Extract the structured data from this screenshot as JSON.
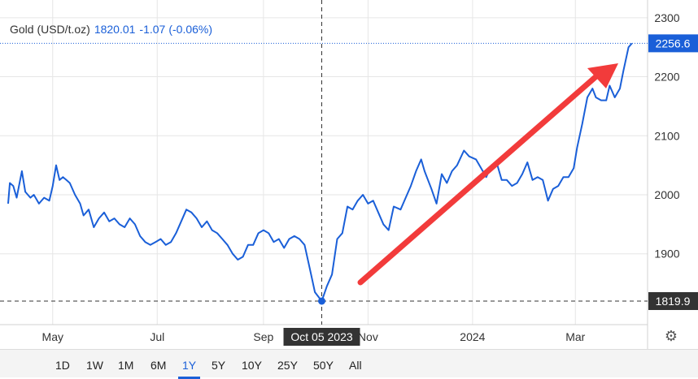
{
  "legend": {
    "name": "Gold (USD/t.oz)",
    "price": "1820.01",
    "change": "-1.07",
    "change_pct": "(-0.06%)"
  },
  "range_buttons": [
    "1D",
    "1W",
    "1M",
    "6M",
    "1Y",
    "5Y",
    "10Y",
    "25Y",
    "50Y",
    "All"
  ],
  "active_range": "1Y",
  "colors": {
    "line": "#1a5fd8",
    "arrow": "#f23b3b",
    "badge": "#333333",
    "grid": "#e6e6e6",
    "axis": "#333333"
  },
  "icons": {
    "settings": "gear-icon"
  },
  "chart_data": {
    "type": "line",
    "ylim": [
      1780,
      2330
    ],
    "yticks": [
      1900,
      2000,
      2100,
      2200,
      2300
    ],
    "ytick_labels": [
      "1900",
      "2000",
      "2100",
      "2200",
      "2300"
    ],
    "xlim": [
      "2023-04-05",
      "2024-04-05"
    ],
    "xticks": [
      {
        "label": "May",
        "date": "2023-05-01"
      },
      {
        "label": "Jul",
        "date": "2023-07-01"
      },
      {
        "label": "Sep",
        "date": "2023-09-01"
      },
      {
        "label": "Nov",
        "date": "2023-11-01"
      },
      {
        "label": "2024",
        "date": "2024-01-01"
      },
      {
        "label": "Mar",
        "date": "2024-03-01"
      }
    ],
    "grid": true,
    "last_value_badge": "2256.6",
    "crosshair": {
      "date": "2023-10-05",
      "value": 1819.9,
      "x_label": "Oct 05 2023",
      "y_label": "1819.9"
    },
    "series": [
      {
        "values": [
          [
            "2023-04-05",
            1985
          ],
          [
            "2023-04-06",
            2020
          ],
          [
            "2023-04-08",
            2015
          ],
          [
            "2023-04-10",
            1995
          ],
          [
            "2023-04-13",
            2040
          ],
          [
            "2023-04-15",
            2005
          ],
          [
            "2023-04-18",
            1995
          ],
          [
            "2023-04-20",
            2000
          ],
          [
            "2023-04-23",
            1985
          ],
          [
            "2023-04-26",
            1995
          ],
          [
            "2023-04-29",
            1990
          ],
          [
            "2023-05-01",
            2015
          ],
          [
            "2023-05-03",
            2050
          ],
          [
            "2023-05-05",
            2025
          ],
          [
            "2023-05-07",
            2030
          ],
          [
            "2023-05-09",
            2025
          ],
          [
            "2023-05-11",
            2020
          ],
          [
            "2023-05-14",
            2000
          ],
          [
            "2023-05-17",
            1985
          ],
          [
            "2023-05-19",
            1965
          ],
          [
            "2023-05-22",
            1975
          ],
          [
            "2023-05-25",
            1945
          ],
          [
            "2023-05-28",
            1960
          ],
          [
            "2023-05-31",
            1970
          ],
          [
            "2023-06-03",
            1955
          ],
          [
            "2023-06-06",
            1960
          ],
          [
            "2023-06-09",
            1950
          ],
          [
            "2023-06-12",
            1945
          ],
          [
            "2023-06-15",
            1960
          ],
          [
            "2023-06-18",
            1950
          ],
          [
            "2023-06-21",
            1930
          ],
          [
            "2023-06-24",
            1920
          ],
          [
            "2023-06-27",
            1915
          ],
          [
            "2023-06-30",
            1920
          ],
          [
            "2023-07-03",
            1925
          ],
          [
            "2023-07-06",
            1915
          ],
          [
            "2023-07-09",
            1920
          ],
          [
            "2023-07-12",
            1935
          ],
          [
            "2023-07-15",
            1955
          ],
          [
            "2023-07-18",
            1975
          ],
          [
            "2023-07-21",
            1970
          ],
          [
            "2023-07-24",
            1960
          ],
          [
            "2023-07-27",
            1945
          ],
          [
            "2023-07-30",
            1955
          ],
          [
            "2023-08-02",
            1940
          ],
          [
            "2023-08-05",
            1935
          ],
          [
            "2023-08-08",
            1925
          ],
          [
            "2023-08-11",
            1915
          ],
          [
            "2023-08-14",
            1900
          ],
          [
            "2023-08-17",
            1890
          ],
          [
            "2023-08-20",
            1895
          ],
          [
            "2023-08-23",
            1915
          ],
          [
            "2023-08-26",
            1915
          ],
          [
            "2023-08-29",
            1935
          ],
          [
            "2023-09-01",
            1940
          ],
          [
            "2023-09-04",
            1935
          ],
          [
            "2023-09-07",
            1920
          ],
          [
            "2023-09-10",
            1925
          ],
          [
            "2023-09-13",
            1910
          ],
          [
            "2023-09-16",
            1925
          ],
          [
            "2023-09-19",
            1930
          ],
          [
            "2023-09-22",
            1925
          ],
          [
            "2023-09-25",
            1915
          ],
          [
            "2023-09-28",
            1875
          ],
          [
            "2023-10-01",
            1835
          ],
          [
            "2023-10-05",
            1819.9
          ],
          [
            "2023-10-08",
            1845
          ],
          [
            "2023-10-11",
            1865
          ],
          [
            "2023-10-14",
            1925
          ],
          [
            "2023-10-17",
            1935
          ],
          [
            "2023-10-20",
            1980
          ],
          [
            "2023-10-23",
            1975
          ],
          [
            "2023-10-26",
            1990
          ],
          [
            "2023-10-29",
            2000
          ],
          [
            "2023-11-01",
            1985
          ],
          [
            "2023-11-04",
            1990
          ],
          [
            "2023-11-07",
            1970
          ],
          [
            "2023-11-10",
            1950
          ],
          [
            "2023-11-13",
            1940
          ],
          [
            "2023-11-16",
            1980
          ],
          [
            "2023-11-20",
            1975
          ],
          [
            "2023-11-23",
            1995
          ],
          [
            "2023-11-26",
            2015
          ],
          [
            "2023-11-29",
            2040
          ],
          [
            "2023-12-02",
            2060
          ],
          [
            "2023-12-04",
            2040
          ],
          [
            "2023-12-06",
            2025
          ],
          [
            "2023-12-08",
            2010
          ],
          [
            "2023-12-11",
            1985
          ],
          [
            "2023-12-14",
            2035
          ],
          [
            "2023-12-17",
            2020
          ],
          [
            "2023-12-20",
            2040
          ],
          [
            "2023-12-23",
            2050
          ],
          [
            "2023-12-27",
            2075
          ],
          [
            "2023-12-30",
            2065
          ],
          [
            "2024-01-03",
            2060
          ],
          [
            "2024-01-06",
            2045
          ],
          [
            "2024-01-09",
            2030
          ],
          [
            "2024-01-12",
            2050
          ],
          [
            "2024-01-15",
            2055
          ],
          [
            "2024-01-18",
            2025
          ],
          [
            "2024-01-21",
            2025
          ],
          [
            "2024-01-24",
            2015
          ],
          [
            "2024-01-27",
            2020
          ],
          [
            "2024-01-30",
            2035
          ],
          [
            "2024-02-02",
            2055
          ],
          [
            "2024-02-05",
            2025
          ],
          [
            "2024-02-08",
            2030
          ],
          [
            "2024-02-11",
            2025
          ],
          [
            "2024-02-14",
            1990
          ],
          [
            "2024-02-17",
            2010
          ],
          [
            "2024-02-20",
            2015
          ],
          [
            "2024-02-23",
            2030
          ],
          [
            "2024-02-26",
            2030
          ],
          [
            "2024-02-29",
            2045
          ],
          [
            "2024-03-02",
            2080
          ],
          [
            "2024-03-05",
            2120
          ],
          [
            "2024-03-08",
            2165
          ],
          [
            "2024-03-11",
            2180
          ],
          [
            "2024-03-13",
            2165
          ],
          [
            "2024-03-16",
            2160
          ],
          [
            "2024-03-19",
            2160
          ],
          [
            "2024-03-21",
            2185
          ],
          [
            "2024-03-24",
            2165
          ],
          [
            "2024-03-27",
            2180
          ],
          [
            "2024-03-29",
            2210
          ],
          [
            "2024-04-01",
            2250
          ],
          [
            "2024-04-03",
            2256.6
          ]
        ]
      }
    ]
  }
}
